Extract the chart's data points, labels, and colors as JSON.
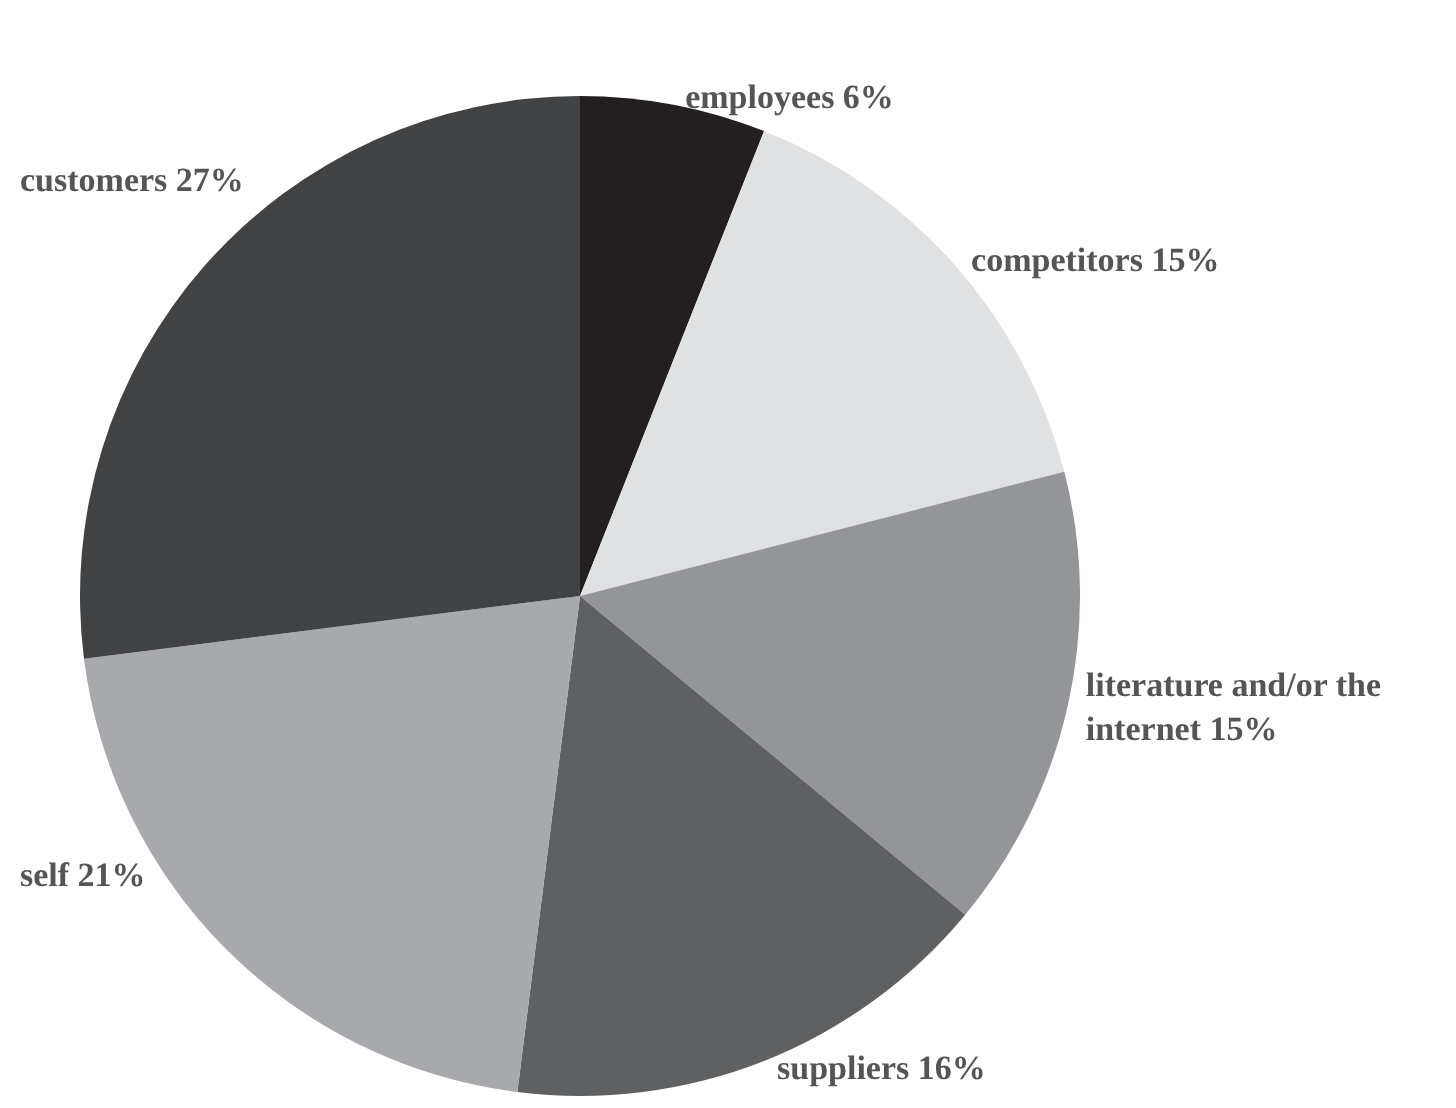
{
  "chart_data": {
    "type": "pie",
    "categories": [
      "employees",
      "competitors",
      "literature and/or the internet",
      "suppliers",
      "self",
      "customers"
    ],
    "values": [
      6,
      15,
      15,
      16,
      21,
      27
    ],
    "colors": [
      "#231f20",
      "#e0e1e2",
      "#939598",
      "#5f6062",
      "#a7a9ac",
      "#404244"
    ],
    "value_labels": [
      "6%",
      "15%",
      "15%",
      "16%",
      "21%",
      "27%"
    ],
    "legend": false
  }
}
